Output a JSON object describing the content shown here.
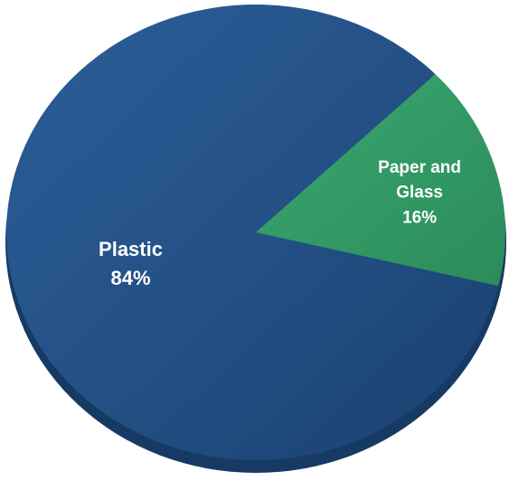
{
  "chart_data": {
    "type": "pie",
    "categories": [
      "Plastic",
      "Paper and Glass"
    ],
    "values": [
      84,
      16
    ],
    "value_labels": [
      "84%",
      "16%"
    ],
    "label_lines": [
      [
        "Plastic",
        "84%"
      ],
      [
        "Paper and",
        "Glass",
        "16%"
      ]
    ],
    "colors": {
      "Plastic": "#1f4a7f",
      "Paper and Glass": "#2f9461",
      "text": "#ffffff",
      "depth": "#163a63"
    },
    "title": "",
    "legend": "none",
    "style": "3d-pie"
  }
}
